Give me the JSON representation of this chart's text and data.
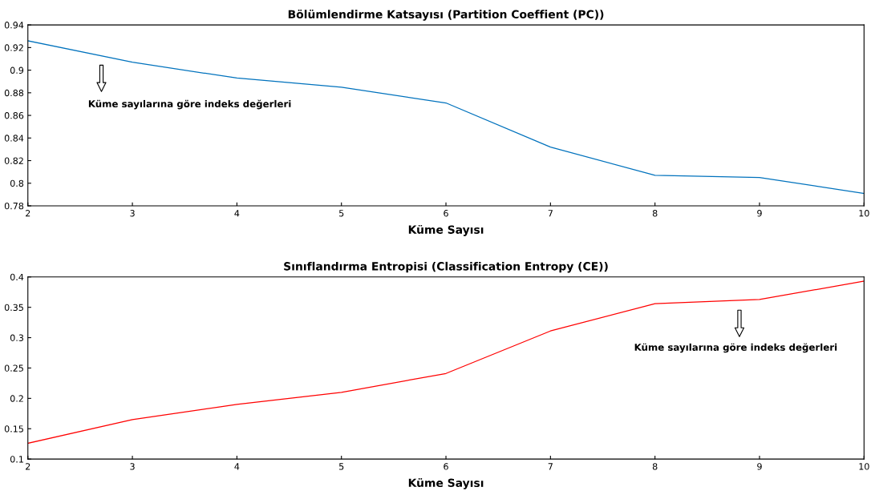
{
  "chart_data": [
    {
      "type": "line",
      "title": "Bölümlendirme Katsayısı (Partition Coeffient (PC))",
      "xlabel": "Küme Sayısı",
      "x": [
        2,
        3,
        4,
        5,
        6,
        7,
        8,
        9,
        10
      ],
      "series": [
        {
          "color": "#0072bd",
          "values": [
            0.926,
            0.907,
            0.893,
            0.885,
            0.871,
            0.832,
            0.807,
            0.805,
            0.791
          ]
        }
      ],
      "xlim": [
        2,
        10
      ],
      "xticks": [
        2,
        3,
        4,
        5,
        6,
        7,
        8,
        9,
        10
      ],
      "ylim": [
        0.78,
        0.94
      ],
      "yticks": [
        0.78,
        0.8,
        0.82,
        0.84,
        0.86,
        0.88,
        0.9,
        0.92,
        0.94
      ],
      "annotations": [
        "Küme sayılarına göre indeks değerleri"
      ]
    },
    {
      "type": "line",
      "title": "Sınıflandırma Entropisi (Classification Entropy (CE))",
      "xlabel": "Küme Sayısı",
      "x": [
        2,
        3,
        4,
        5,
        6,
        7,
        8,
        9,
        10
      ],
      "series": [
        {
          "color": "#ff0000",
          "values": [
            0.126,
            0.165,
            0.19,
            0.21,
            0.241,
            0.311,
            0.356,
            0.363,
            0.393
          ]
        }
      ],
      "xlim": [
        2,
        10
      ],
      "xticks": [
        2,
        3,
        4,
        5,
        6,
        7,
        8,
        9,
        10
      ],
      "ylim": [
        0.1,
        0.4
      ],
      "yticks": [
        0.1,
        0.15,
        0.2,
        0.25,
        0.3,
        0.35,
        0.4
      ],
      "annotations": [
        "Küme sayılarına göre indeks değerleri"
      ]
    }
  ]
}
